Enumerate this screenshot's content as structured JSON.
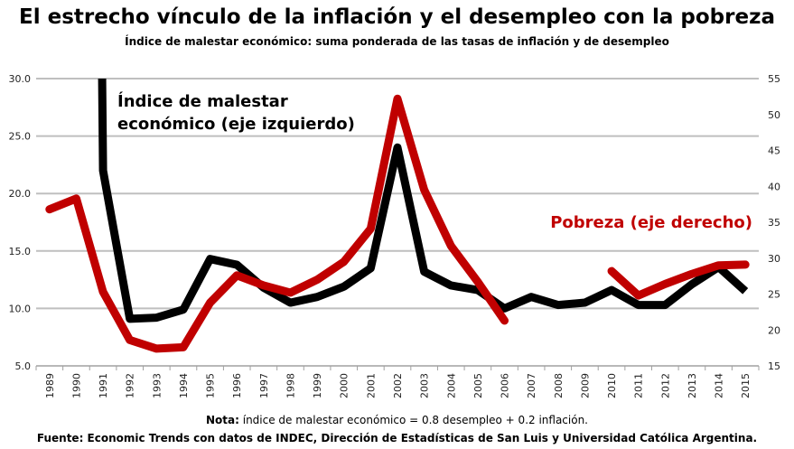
{
  "title": "El estrecho vínculo de la inflación y el desempleo con la pobreza",
  "subtitle": "Índice de malestar económico: suma ponderada de las tasas de inflación y de desempleo",
  "note_bold": "Nota:",
  "note_text": " índice de malestar económico = 0.8 desempleo + 0.2 inflación.",
  "source": "Fuente: Economic Trends con datos de INDEC, Dirección de Estadísticas de San Luis y Universidad Católica Argentina.",
  "chart_data": {
    "type": "line",
    "categories": [
      "1989",
      "1990",
      "1991",
      "1992",
      "1993",
      "1994",
      "1995",
      "1996",
      "1997",
      "1998",
      "1999",
      "2000",
      "2001",
      "2002",
      "2003",
      "2004",
      "2005",
      "2006",
      "2007",
      "2008",
      "2009",
      "2010",
      "2011",
      "2012",
      "2013",
      "2014",
      "2015"
    ],
    "left_axis": {
      "range": [
        5,
        30
      ],
      "ticks": [
        "5.0",
        "10.0",
        "15.0",
        "20.0",
        "25.0",
        "30.0"
      ]
    },
    "right_axis": {
      "range": [
        15,
        55
      ],
      "ticks": [
        "15",
        "20",
        "25",
        "30",
        "35",
        "40",
        "45",
        "50",
        "55"
      ]
    },
    "grid": true,
    "series": [
      {
        "name": "Índice de malestar económico (eje izquierdo)",
        "label_line1": "Índice de malestar",
        "label_line2": "económico (eje izquierdo)",
        "axis": "left",
        "color": "#000000",
        "note": "1989–1990 values exceed the axis and are clipped",
        "values": [
          null,
          null,
          22.0,
          9.1,
          9.2,
          9.9,
          14.3,
          13.8,
          11.8,
          10.5,
          11.0,
          11.9,
          13.5,
          24.0,
          13.2,
          12.0,
          11.6,
          10.0,
          11.0,
          10.3,
          10.5,
          11.6,
          10.3,
          10.3,
          12.1,
          13.6,
          11.5
        ]
      },
      {
        "name": "Pobreza (eje derecho)",
        "axis": "right",
        "color": "#c00000",
        "values": [
          36.8,
          38.3,
          25.3,
          18.6,
          17.4,
          17.6,
          23.8,
          27.6,
          26.2,
          25.2,
          27.0,
          29.5,
          34.1,
          52.2,
          39.5,
          31.7,
          26.7,
          21.3,
          null,
          null,
          null,
          28.2,
          24.8,
          26.4,
          27.8,
          29.0,
          29.1
        ]
      }
    ]
  }
}
